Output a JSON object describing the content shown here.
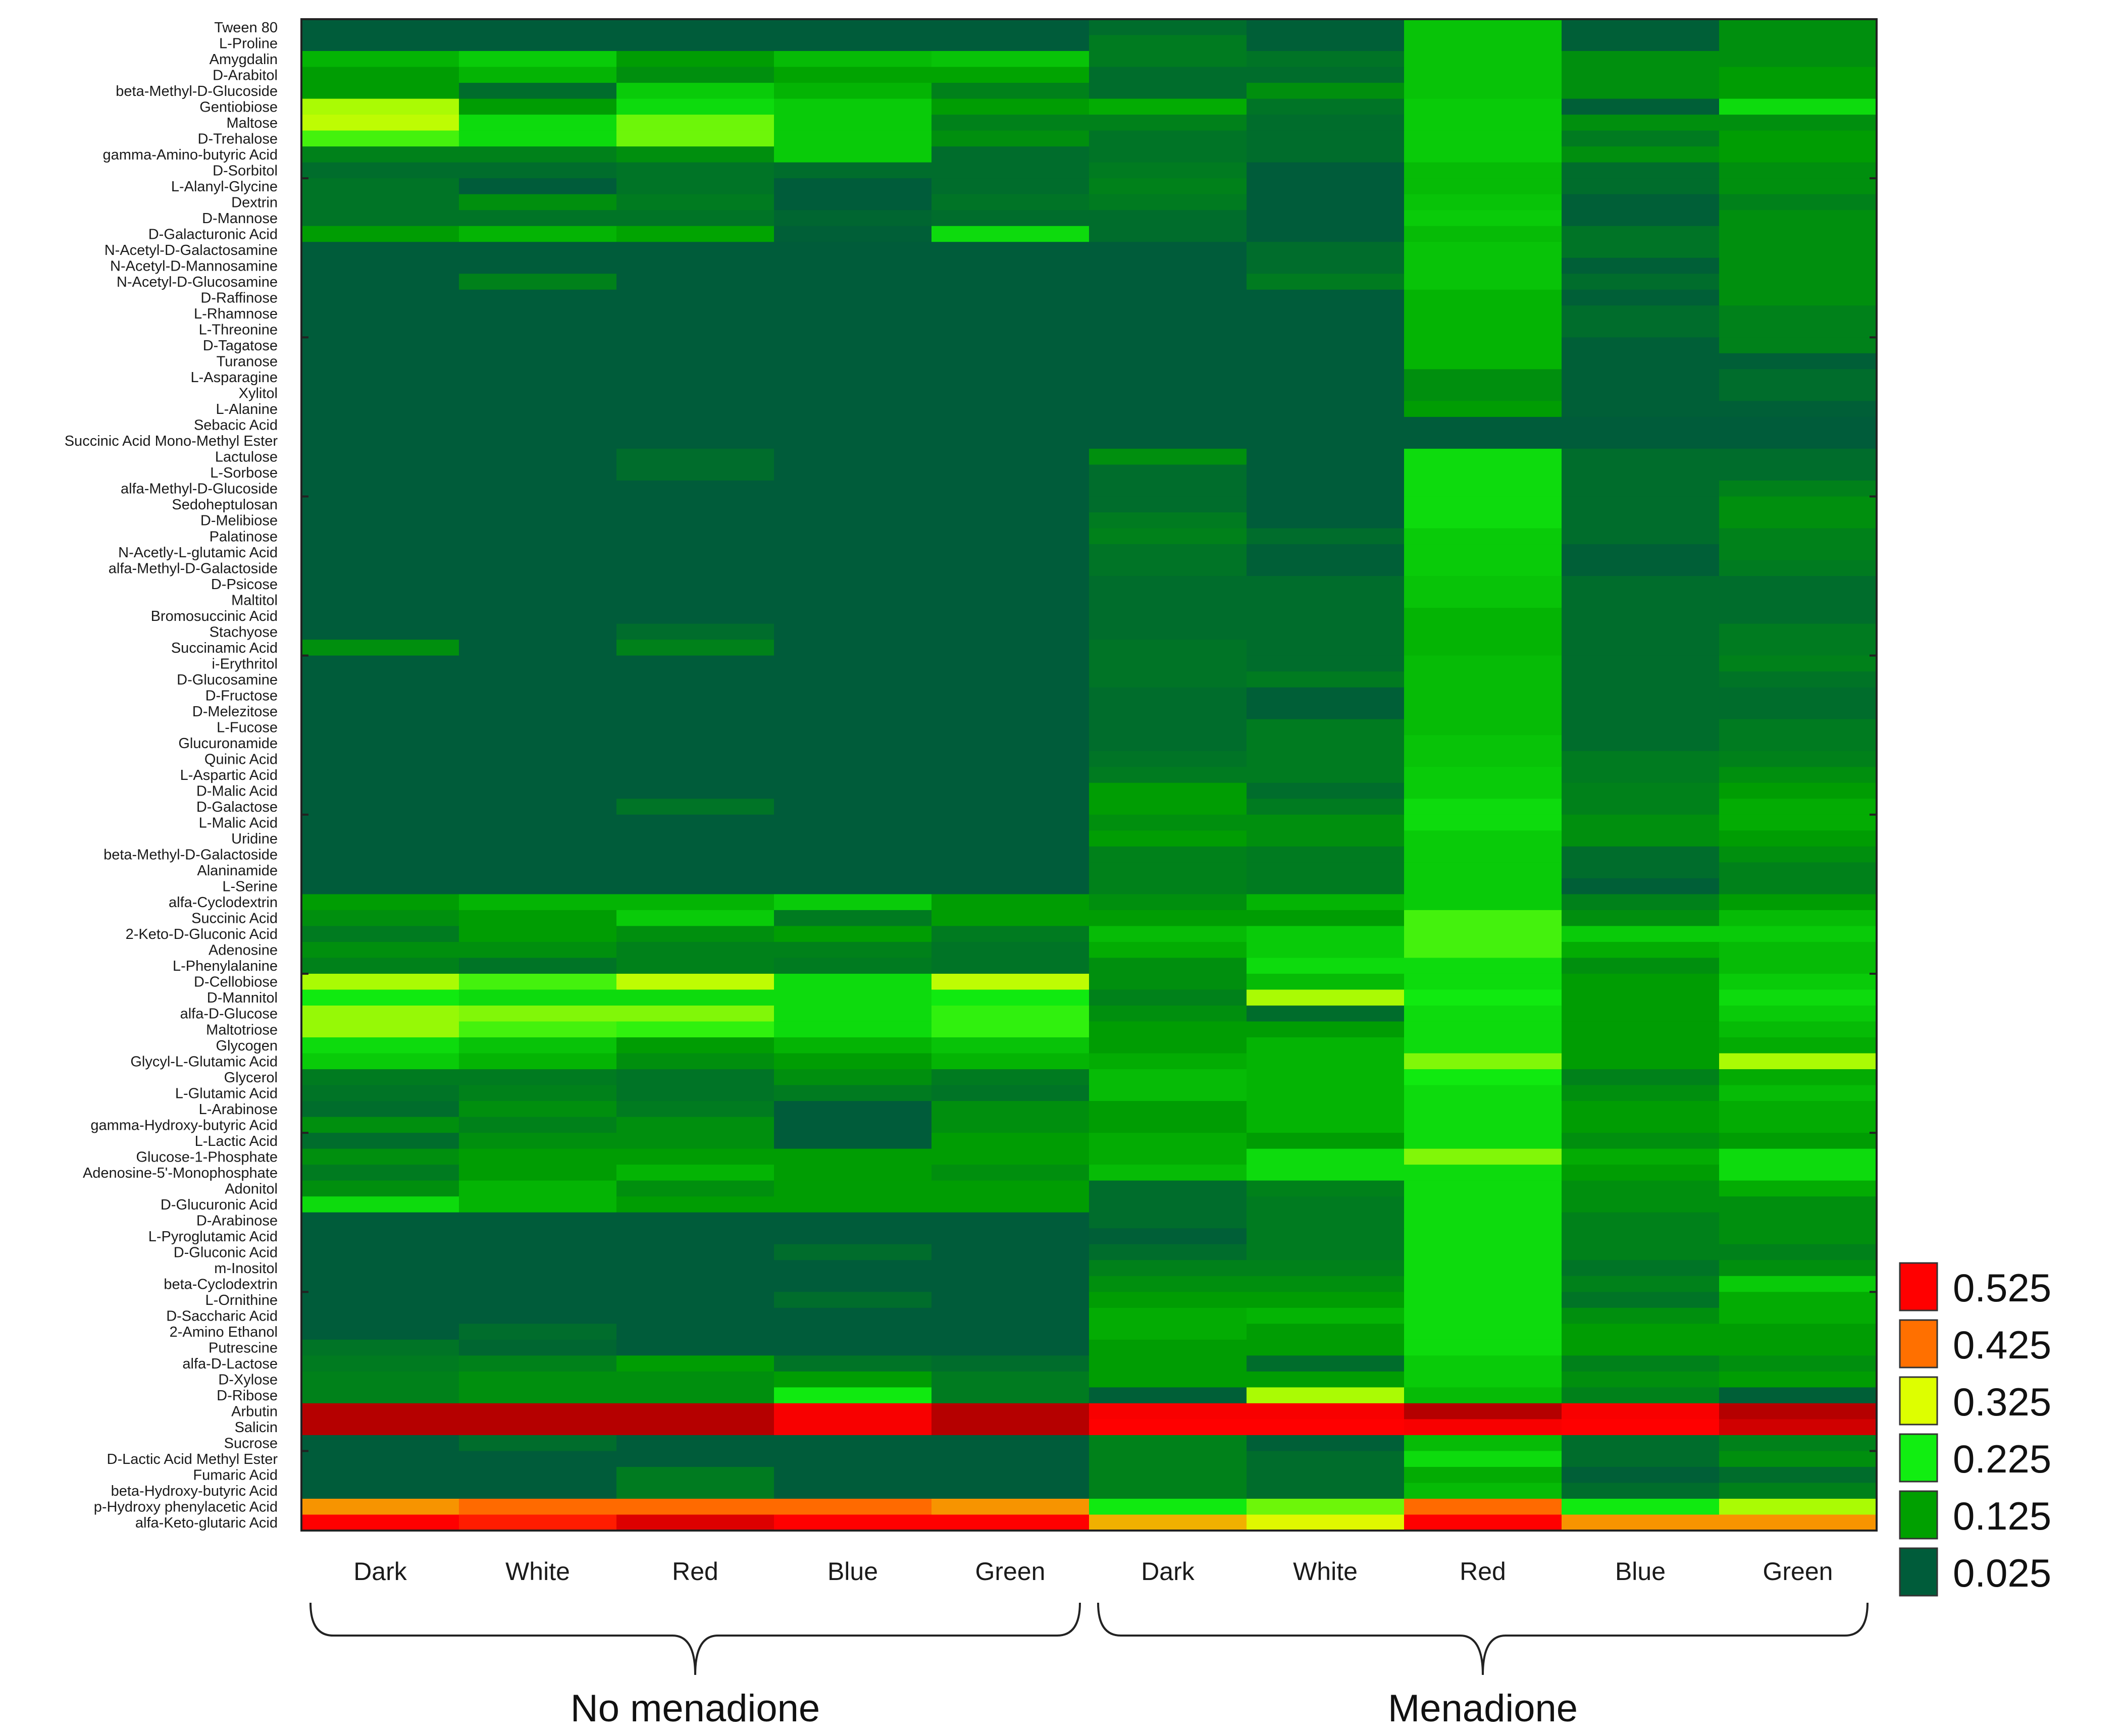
{
  "chart_data": {
    "type": "heatmap",
    "title": "",
    "columns": [
      "Dark",
      "White",
      "Red",
      "Blue",
      "Green",
      "Dark",
      "White",
      "Red",
      "Blue",
      "Green"
    ],
    "groups": [
      {
        "label": "No menadione",
        "columns": [
          0,
          1,
          2,
          3,
          4
        ]
      },
      {
        "label": "Menadione",
        "columns": [
          5,
          6,
          7,
          8,
          9
        ]
      }
    ],
    "rows": [
      "Tween 80",
      "L-Proline",
      "Amygdalin",
      "D-Arabitol",
      "beta-Methyl-D-Glucoside",
      "Gentiobiose",
      "Maltose",
      "D-Trehalose",
      "gamma-Amino-butyric Acid",
      "D-Sorbitol",
      "L-Alanyl-Glycine",
      "Dextrin",
      "D-Mannose",
      "D-Galacturonic Acid",
      "N-Acetyl-D-Galactosamine",
      "N-Acetyl-D-Mannosamine",
      "N-Acetyl-D-Glucosamine",
      "D-Raffinose",
      "L-Rhamnose",
      "L-Threonine",
      "D-Tagatose",
      "Turanose",
      "L-Asparagine",
      "Xylitol",
      "L-Alanine",
      "Sebacic Acid",
      "Succinic Acid Mono-Methyl Ester",
      "Lactulose",
      "L-Sorbose",
      "alfa-Methyl-D-Glucoside",
      "Sedoheptulosan",
      "D-Melibiose",
      "Palatinose",
      "N-Acetly-L-glutamic Acid",
      "alfa-Methyl-D-Galactoside",
      "D-Psicose",
      "Maltitol",
      "Bromosuccinic Acid",
      "Stachyose",
      "Succinamic Acid",
      "i-Erythritol",
      "D-Glucosamine",
      "D-Fructose",
      "D-Melezitose",
      "L-Fucose",
      "Glucuronamide",
      "Quinic Acid",
      "L-Aspartic Acid",
      "D-Malic Acid",
      "D-Galactose",
      "L-Malic Acid",
      "Uridine",
      "beta-Methyl-D-Galactoside",
      "Alaninamide",
      "L-Serine",
      "alfa-Cyclodextrin",
      "Succinic Acid",
      "2-Keto-D-Gluconic Acid",
      "Adenosine",
      "L-Phenylalanine",
      "D-Cellobiose",
      "D-Mannitol",
      "alfa-D-Glucose",
      "Maltotriose",
      "Glycogen",
      "Glycyl-L-Glutamic Acid",
      "Glycerol",
      "L-Glutamic Acid",
      "L-Arabinose",
      "gamma-Hydroxy-butyric Acid",
      "L-Lactic Acid",
      "Glucose-1-Phosphate",
      "Adenosine-5'-Monophosphate",
      "Adonitol",
      "D-Glucuronic Acid",
      "D-Arabinose",
      "L-Pyroglutamic Acid",
      "D-Gluconic Acid",
      "m-Inositol",
      "beta-Cyclodextrin",
      "L-Ornithine",
      "D-Saccharic Acid",
      "2-Amino Ethanol",
      "Putrescine",
      "alfa-D-Lactose",
      "D-Xylose",
      "D-Ribose",
      "Arbutin",
      "Salicin",
      "Sucrose",
      "D-Lactic Acid Methyl Ester",
      "Fumaric Acid",
      "beta-Hydroxy-butyric Acid",
      "p-Hydroxy phenylacetic Acid",
      "alfa-Keto-glutaric Acid"
    ],
    "values": [
      [
        0.025,
        0.025,
        0.025,
        0.025,
        0.025,
        0.05,
        0.03,
        0.17,
        0.03,
        0.1
      ],
      [
        0.025,
        0.025,
        0.025,
        0.025,
        0.025,
        0.07,
        0.03,
        0.17,
        0.03,
        0.1
      ],
      [
        0.15,
        0.18,
        0.12,
        0.16,
        0.17,
        0.07,
        0.06,
        0.17,
        0.1,
        0.1
      ],
      [
        0.12,
        0.15,
        0.1,
        0.13,
        0.13,
        0.05,
        0.05,
        0.17,
        0.1,
        0.12
      ],
      [
        0.12,
        0.05,
        0.18,
        0.15,
        0.08,
        0.05,
        0.1,
        0.17,
        0.1,
        0.12
      ],
      [
        0.3,
        0.12,
        0.2,
        0.18,
        0.12,
        0.14,
        0.06,
        0.18,
        0.03,
        0.2
      ],
      [
        0.31,
        0.2,
        0.27,
        0.18,
        0.08,
        0.08,
        0.05,
        0.18,
        0.1,
        0.1
      ],
      [
        0.25,
        0.2,
        0.27,
        0.18,
        0.1,
        0.06,
        0.05,
        0.18,
        0.07,
        0.12
      ],
      [
        0.08,
        0.08,
        0.1,
        0.18,
        0.05,
        0.06,
        0.05,
        0.18,
        0.1,
        0.12
      ],
      [
        0.05,
        0.05,
        0.06,
        0.05,
        0.05,
        0.07,
        0.025,
        0.16,
        0.05,
        0.1
      ],
      [
        0.06,
        0.025,
        0.06,
        0.025,
        0.05,
        0.08,
        0.025,
        0.16,
        0.05,
        0.1
      ],
      [
        0.06,
        0.1,
        0.07,
        0.025,
        0.06,
        0.07,
        0.025,
        0.17,
        0.03,
        0.08
      ],
      [
        0.06,
        0.06,
        0.06,
        0.04,
        0.05,
        0.05,
        0.025,
        0.18,
        0.03,
        0.1
      ],
      [
        0.12,
        0.15,
        0.13,
        0.03,
        0.2,
        0.05,
        0.025,
        0.16,
        0.06,
        0.1
      ],
      [
        0.025,
        0.025,
        0.025,
        0.025,
        0.025,
        0.025,
        0.05,
        0.17,
        0.06,
        0.1
      ],
      [
        0.025,
        0.025,
        0.025,
        0.025,
        0.025,
        0.025,
        0.05,
        0.17,
        0.03,
        0.1
      ],
      [
        0.025,
        0.08,
        0.025,
        0.025,
        0.025,
        0.025,
        0.07,
        0.17,
        0.05,
        0.1
      ],
      [
        0.025,
        0.025,
        0.025,
        0.025,
        0.025,
        0.025,
        0.025,
        0.15,
        0.03,
        0.1
      ],
      [
        0.025,
        0.025,
        0.025,
        0.025,
        0.025,
        0.025,
        0.025,
        0.15,
        0.05,
        0.08
      ],
      [
        0.025,
        0.025,
        0.025,
        0.025,
        0.025,
        0.025,
        0.025,
        0.15,
        0.05,
        0.08
      ],
      [
        0.025,
        0.025,
        0.025,
        0.025,
        0.025,
        0.025,
        0.025,
        0.15,
        0.03,
        0.08
      ],
      [
        0.025,
        0.025,
        0.025,
        0.025,
        0.025,
        0.025,
        0.025,
        0.15,
        0.03,
        0.03
      ],
      [
        0.025,
        0.025,
        0.025,
        0.025,
        0.025,
        0.025,
        0.025,
        0.1,
        0.03,
        0.05
      ],
      [
        0.025,
        0.025,
        0.025,
        0.025,
        0.025,
        0.025,
        0.025,
        0.1,
        0.03,
        0.05
      ],
      [
        0.025,
        0.025,
        0.025,
        0.025,
        0.025,
        0.025,
        0.025,
        0.12,
        0.03,
        0.03
      ],
      [
        0.025,
        0.025,
        0.025,
        0.025,
        0.025,
        0.025,
        0.025,
        0.025,
        0.025,
        0.025
      ],
      [
        0.025,
        0.025,
        0.025,
        0.025,
        0.025,
        0.025,
        0.025,
        0.025,
        0.025,
        0.025
      ],
      [
        0.025,
        0.025,
        0.05,
        0.025,
        0.025,
        0.1,
        0.025,
        0.2,
        0.05,
        0.05
      ],
      [
        0.025,
        0.025,
        0.05,
        0.025,
        0.025,
        0.05,
        0.025,
        0.2,
        0.05,
        0.05
      ],
      [
        0.025,
        0.025,
        0.025,
        0.025,
        0.025,
        0.05,
        0.025,
        0.2,
        0.05,
        0.08
      ],
      [
        0.025,
        0.025,
        0.025,
        0.025,
        0.025,
        0.05,
        0.025,
        0.2,
        0.05,
        0.1
      ],
      [
        0.025,
        0.025,
        0.025,
        0.025,
        0.025,
        0.07,
        0.025,
        0.2,
        0.05,
        0.1
      ],
      [
        0.025,
        0.025,
        0.025,
        0.025,
        0.025,
        0.08,
        0.05,
        0.18,
        0.05,
        0.08
      ],
      [
        0.025,
        0.025,
        0.025,
        0.025,
        0.025,
        0.06,
        0.03,
        0.18,
        0.03,
        0.08
      ],
      [
        0.025,
        0.025,
        0.025,
        0.025,
        0.025,
        0.06,
        0.03,
        0.18,
        0.03,
        0.07
      ],
      [
        0.025,
        0.025,
        0.025,
        0.025,
        0.025,
        0.05,
        0.05,
        0.17,
        0.05,
        0.05
      ],
      [
        0.025,
        0.025,
        0.025,
        0.025,
        0.025,
        0.05,
        0.05,
        0.17,
        0.05,
        0.05
      ],
      [
        0.025,
        0.025,
        0.025,
        0.025,
        0.025,
        0.05,
        0.05,
        0.15,
        0.05,
        0.05
      ],
      [
        0.025,
        0.025,
        0.05,
        0.025,
        0.025,
        0.05,
        0.05,
        0.15,
        0.05,
        0.07
      ],
      [
        0.1,
        0.025,
        0.08,
        0.025,
        0.025,
        0.06,
        0.05,
        0.15,
        0.05,
        0.07
      ],
      [
        0.025,
        0.025,
        0.025,
        0.025,
        0.025,
        0.06,
        0.05,
        0.16,
        0.05,
        0.08
      ],
      [
        0.025,
        0.025,
        0.025,
        0.025,
        0.025,
        0.06,
        0.07,
        0.16,
        0.05,
        0.06
      ],
      [
        0.025,
        0.025,
        0.025,
        0.025,
        0.025,
        0.05,
        0.03,
        0.16,
        0.05,
        0.05
      ],
      [
        0.025,
        0.025,
        0.025,
        0.025,
        0.025,
        0.05,
        0.03,
        0.16,
        0.05,
        0.05
      ],
      [
        0.025,
        0.025,
        0.025,
        0.025,
        0.025,
        0.05,
        0.07,
        0.16,
        0.05,
        0.07
      ],
      [
        0.025,
        0.025,
        0.025,
        0.025,
        0.025,
        0.05,
        0.07,
        0.17,
        0.05,
        0.07
      ],
      [
        0.025,
        0.025,
        0.025,
        0.025,
        0.025,
        0.06,
        0.07,
        0.17,
        0.07,
        0.08
      ],
      [
        0.025,
        0.025,
        0.025,
        0.025,
        0.025,
        0.07,
        0.07,
        0.18,
        0.07,
        0.1
      ],
      [
        0.025,
        0.025,
        0.025,
        0.025,
        0.025,
        0.12,
        0.05,
        0.18,
        0.08,
        0.12
      ],
      [
        0.025,
        0.025,
        0.06,
        0.025,
        0.025,
        0.12,
        0.07,
        0.2,
        0.08,
        0.14
      ],
      [
        0.025,
        0.025,
        0.025,
        0.025,
        0.025,
        0.1,
        0.1,
        0.2,
        0.1,
        0.14
      ],
      [
        0.025,
        0.025,
        0.025,
        0.025,
        0.025,
        0.12,
        0.1,
        0.18,
        0.1,
        0.12
      ],
      [
        0.025,
        0.025,
        0.025,
        0.025,
        0.025,
        0.08,
        0.07,
        0.18,
        0.05,
        0.1
      ],
      [
        0.025,
        0.025,
        0.025,
        0.025,
        0.025,
        0.08,
        0.07,
        0.18,
        0.05,
        0.08
      ],
      [
        0.025,
        0.025,
        0.025,
        0.025,
        0.025,
        0.08,
        0.07,
        0.18,
        0.03,
        0.08
      ],
      [
        0.12,
        0.15,
        0.15,
        0.18,
        0.12,
        0.1,
        0.15,
        0.18,
        0.08,
        0.12
      ],
      [
        0.1,
        0.12,
        0.18,
        0.07,
        0.12,
        0.12,
        0.12,
        0.25,
        0.1,
        0.16
      ],
      [
        0.07,
        0.12,
        0.1,
        0.12,
        0.07,
        0.16,
        0.18,
        0.25,
        0.18,
        0.18
      ],
      [
        0.1,
        0.1,
        0.08,
        0.08,
        0.06,
        0.14,
        0.18,
        0.25,
        0.14,
        0.16
      ],
      [
        0.08,
        0.06,
        0.08,
        0.07,
        0.06,
        0.1,
        0.2,
        0.2,
        0.1,
        0.16
      ],
      [
        0.3,
        0.25,
        0.31,
        0.2,
        0.31,
        0.1,
        0.16,
        0.2,
        0.12,
        0.18
      ],
      [
        0.22,
        0.2,
        0.2,
        0.2,
        0.22,
        0.08,
        0.3,
        0.22,
        0.12,
        0.2
      ],
      [
        0.29,
        0.28,
        0.28,
        0.2,
        0.24,
        0.1,
        0.05,
        0.2,
        0.12,
        0.18
      ],
      [
        0.29,
        0.25,
        0.24,
        0.2,
        0.24,
        0.12,
        0.12,
        0.2,
        0.12,
        0.16
      ],
      [
        0.2,
        0.17,
        0.12,
        0.15,
        0.17,
        0.12,
        0.15,
        0.2,
        0.12,
        0.14
      ],
      [
        0.18,
        0.15,
        0.1,
        0.12,
        0.15,
        0.14,
        0.15,
        0.28,
        0.12,
        0.3
      ],
      [
        0.07,
        0.07,
        0.06,
        0.1,
        0.07,
        0.16,
        0.15,
        0.22,
        0.08,
        0.14
      ],
      [
        0.06,
        0.08,
        0.06,
        0.07,
        0.06,
        0.16,
        0.15,
        0.2,
        0.1,
        0.16
      ],
      [
        0.05,
        0.1,
        0.07,
        0.025,
        0.1,
        0.12,
        0.15,
        0.2,
        0.12,
        0.14
      ],
      [
        0.1,
        0.08,
        0.1,
        0.025,
        0.1,
        0.12,
        0.15,
        0.2,
        0.12,
        0.14
      ],
      [
        0.05,
        0.1,
        0.1,
        0.025,
        0.12,
        0.14,
        0.12,
        0.2,
        0.1,
        0.12
      ],
      [
        0.1,
        0.12,
        0.12,
        0.12,
        0.12,
        0.14,
        0.2,
        0.28,
        0.14,
        0.2
      ],
      [
        0.07,
        0.12,
        0.15,
        0.12,
        0.1,
        0.16,
        0.2,
        0.2,
        0.12,
        0.2
      ],
      [
        0.1,
        0.15,
        0.1,
        0.12,
        0.12,
        0.05,
        0.08,
        0.2,
        0.1,
        0.14
      ],
      [
        0.2,
        0.15,
        0.12,
        0.12,
        0.12,
        0.05,
        0.07,
        0.2,
        0.1,
        0.1
      ],
      [
        0.025,
        0.025,
        0.025,
        0.025,
        0.025,
        0.05,
        0.07,
        0.2,
        0.08,
        0.1
      ],
      [
        0.025,
        0.025,
        0.025,
        0.025,
        0.025,
        0.03,
        0.07,
        0.2,
        0.08,
        0.1
      ],
      [
        0.025,
        0.025,
        0.025,
        0.05,
        0.025,
        0.05,
        0.07,
        0.2,
        0.08,
        0.08
      ],
      [
        0.025,
        0.025,
        0.025,
        0.025,
        0.025,
        0.08,
        0.08,
        0.2,
        0.06,
        0.1
      ],
      [
        0.025,
        0.025,
        0.025,
        0.025,
        0.025,
        0.1,
        0.1,
        0.2,
        0.08,
        0.18
      ],
      [
        0.025,
        0.025,
        0.025,
        0.05,
        0.025,
        0.12,
        0.12,
        0.2,
        0.06,
        0.14
      ],
      [
        0.025,
        0.025,
        0.025,
        0.025,
        0.025,
        0.14,
        0.15,
        0.2,
        0.1,
        0.14
      ],
      [
        0.025,
        0.05,
        0.025,
        0.025,
        0.025,
        0.14,
        0.12,
        0.2,
        0.12,
        0.12
      ],
      [
        0.06,
        0.04,
        0.025,
        0.025,
        0.025,
        0.12,
        0.12,
        0.2,
        0.12,
        0.12
      ],
      [
        0.07,
        0.08,
        0.12,
        0.06,
        0.05,
        0.12,
        0.05,
        0.18,
        0.08,
        0.1
      ],
      [
        0.08,
        0.1,
        0.1,
        0.12,
        0.07,
        0.12,
        0.12,
        0.18,
        0.1,
        0.12
      ],
      [
        0.08,
        0.1,
        0.1,
        0.22,
        0.07,
        0.03,
        0.3,
        0.16,
        0.08,
        0.03
      ],
      [
        0.58,
        0.58,
        0.58,
        0.53,
        0.58,
        0.53,
        0.53,
        0.58,
        0.53,
        0.58
      ],
      [
        0.58,
        0.58,
        0.58,
        0.53,
        0.58,
        0.525,
        0.525,
        0.53,
        0.525,
        0.56
      ],
      [
        0.025,
        0.05,
        0.025,
        0.025,
        0.025,
        0.08,
        0.03,
        0.16,
        0.05,
        0.08
      ],
      [
        0.025,
        0.025,
        0.025,
        0.025,
        0.025,
        0.08,
        0.05,
        0.2,
        0.05,
        0.1
      ],
      [
        0.025,
        0.025,
        0.07,
        0.025,
        0.025,
        0.08,
        0.05,
        0.14,
        0.03,
        0.05
      ],
      [
        0.025,
        0.025,
        0.07,
        0.025,
        0.025,
        0.08,
        0.05,
        0.16,
        0.05,
        0.08
      ],
      [
        0.4,
        0.43,
        0.43,
        0.43,
        0.4,
        0.22,
        0.27,
        0.43,
        0.22,
        0.3
      ],
      [
        0.525,
        0.5,
        0.55,
        0.525,
        0.525,
        0.38,
        0.33,
        0.525,
        0.4,
        0.4
      ]
    ],
    "legend": {
      "position": "bottom-right",
      "items": [
        {
          "label": "0.525",
          "color": "#ff0000"
        },
        {
          "label": "0.425",
          "color": "#ff7000"
        },
        {
          "label": "0.325",
          "color": "#ddff00"
        },
        {
          "label": "0.225",
          "color": "#11ee11"
        },
        {
          "label": "0.125",
          "color": "#00a000"
        },
        {
          "label": "0.025",
          "color": "#005c3a"
        }
      ]
    },
    "color_stops": [
      {
        "v": 0.025,
        "color": "#005c3a"
      },
      {
        "v": 0.125,
        "color": "#00a000"
      },
      {
        "v": 0.225,
        "color": "#11ee11"
      },
      {
        "v": 0.325,
        "color": "#ddff00"
      },
      {
        "v": 0.425,
        "color": "#ff7000"
      },
      {
        "v": 0.525,
        "color": "#ff0000"
      },
      {
        "v": 0.6,
        "color": "#9a0000"
      }
    ]
  }
}
